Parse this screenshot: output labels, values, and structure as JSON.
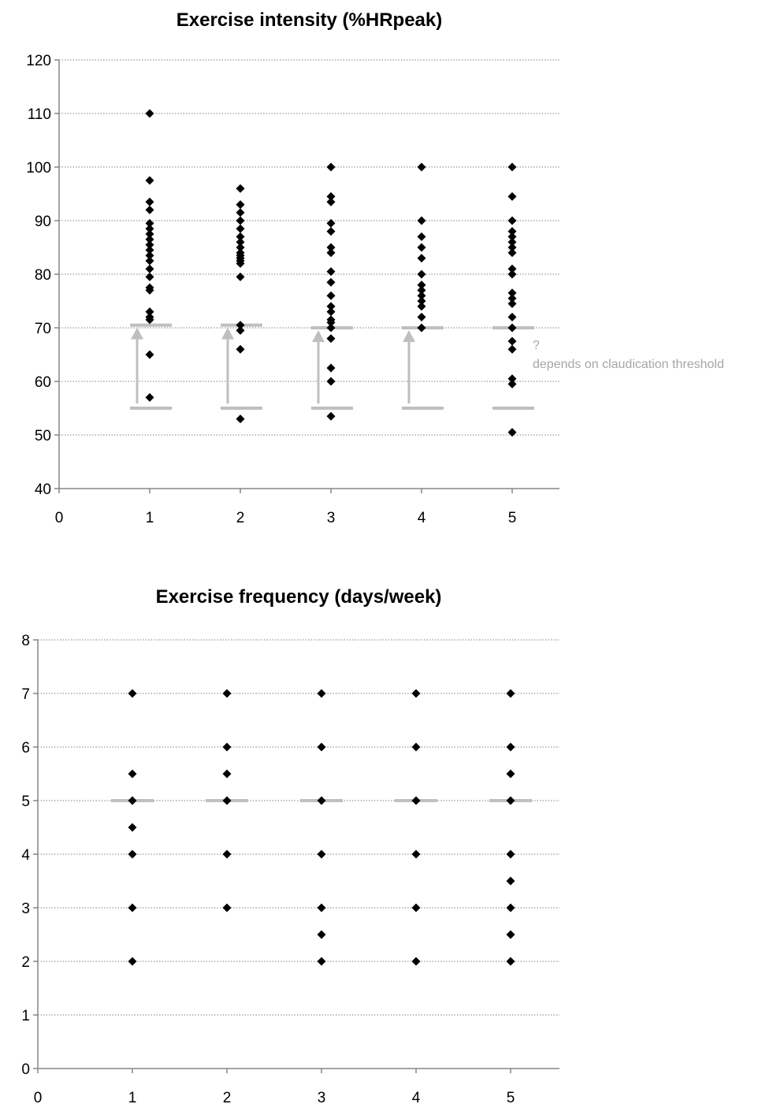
{
  "chart_data": [
    {
      "type": "scatter",
      "title": "Exercise intensity (%HRpeak)",
      "xlabel": "",
      "ylabel": "",
      "xlim": [
        0,
        5.5
      ],
      "ylim": [
        40,
        120
      ],
      "x_ticks": [
        0,
        1,
        2,
        3,
        4,
        5
      ],
      "y_ticks": [
        40,
        50,
        60,
        70,
        80,
        90,
        100,
        110,
        120
      ],
      "grid": "horizontal dotted",
      "legend": "none",
      "marker_color": "#000000",
      "reference_color": "#bfbfbf",
      "annotation_color": "#a6a6a6",
      "points": [
        {
          "x": 1,
          "values": [
            110,
            97.5,
            93.5,
            92,
            89.5,
            88.5,
            87.5,
            86.5,
            85.5,
            84.5,
            83.5,
            82.5,
            81,
            79.5,
            77.5,
            77,
            73,
            72,
            71.5,
            65,
            57
          ]
        },
        {
          "x": 2,
          "values": [
            96,
            93,
            91.5,
            90,
            88.5,
            87,
            86,
            85,
            84,
            83.5,
            83,
            82.5,
            82,
            79.5,
            70.5,
            69.5,
            66,
            53
          ]
        },
        {
          "x": 3,
          "values": [
            100,
            94.5,
            93.5,
            89.5,
            88,
            85,
            84,
            80.5,
            78.5,
            76,
            74,
            73,
            71.5,
            71,
            70,
            68,
            62.5,
            60,
            53.5
          ]
        },
        {
          "x": 4,
          "values": [
            100,
            90,
            87,
            85,
            83,
            80,
            78,
            77,
            76,
            75,
            74,
            72,
            70
          ]
        },
        {
          "x": 5,
          "values": [
            100,
            94.5,
            90,
            88,
            87,
            86,
            85,
            84,
            81,
            80,
            76.5,
            75.5,
            74.5,
            72,
            70,
            67.5,
            66,
            60.5,
            59.5,
            50.5
          ]
        }
      ],
      "reference_ranges": [
        {
          "x": 1,
          "low": 55,
          "high": 70.5,
          "arrow": true
        },
        {
          "x": 2,
          "low": 55,
          "high": 70.5,
          "arrow": true
        },
        {
          "x": 3,
          "low": 55,
          "high": 70,
          "arrow": true
        },
        {
          "x": 4,
          "low": 55,
          "high": 70,
          "arrow": true
        },
        {
          "x": 5,
          "low": 55,
          "high": 70,
          "arrow": false
        }
      ],
      "annotation": {
        "line1": "?",
        "line2": "depends on claudication threshold"
      }
    },
    {
      "type": "scatter",
      "title": "Exercise frequency (days/week)",
      "xlabel": "",
      "ylabel": "",
      "xlim": [
        0,
        5.5
      ],
      "ylim": [
        0,
        8
      ],
      "x_ticks": [
        0,
        1,
        2,
        3,
        4,
        5
      ],
      "y_ticks": [
        0,
        1,
        2,
        3,
        4,
        5,
        6,
        7,
        8
      ],
      "grid": "horizontal dotted",
      "legend": "none",
      "marker_color": "#000000",
      "reference_color": "#bfbfbf",
      "points": [
        {
          "x": 1,
          "values": [
            7,
            5.5,
            5,
            4.5,
            4,
            3,
            2
          ]
        },
        {
          "x": 2,
          "values": [
            7,
            6,
            5.5,
            5,
            4,
            3
          ]
        },
        {
          "x": 3,
          "values": [
            7,
            6,
            5,
            4,
            3,
            2.5,
            2
          ]
        },
        {
          "x": 4,
          "values": [
            7,
            6,
            5,
            4,
            3,
            2
          ]
        },
        {
          "x": 5,
          "values": [
            7,
            6,
            5.5,
            5,
            4,
            3.5,
            3,
            2.5,
            2
          ]
        }
      ],
      "reference_lines": [
        {
          "x": 1,
          "y": 5
        },
        {
          "x": 2,
          "y": 5
        },
        {
          "x": 3,
          "y": 5
        },
        {
          "x": 4,
          "y": 5
        },
        {
          "x": 5,
          "y": 5
        }
      ]
    }
  ]
}
